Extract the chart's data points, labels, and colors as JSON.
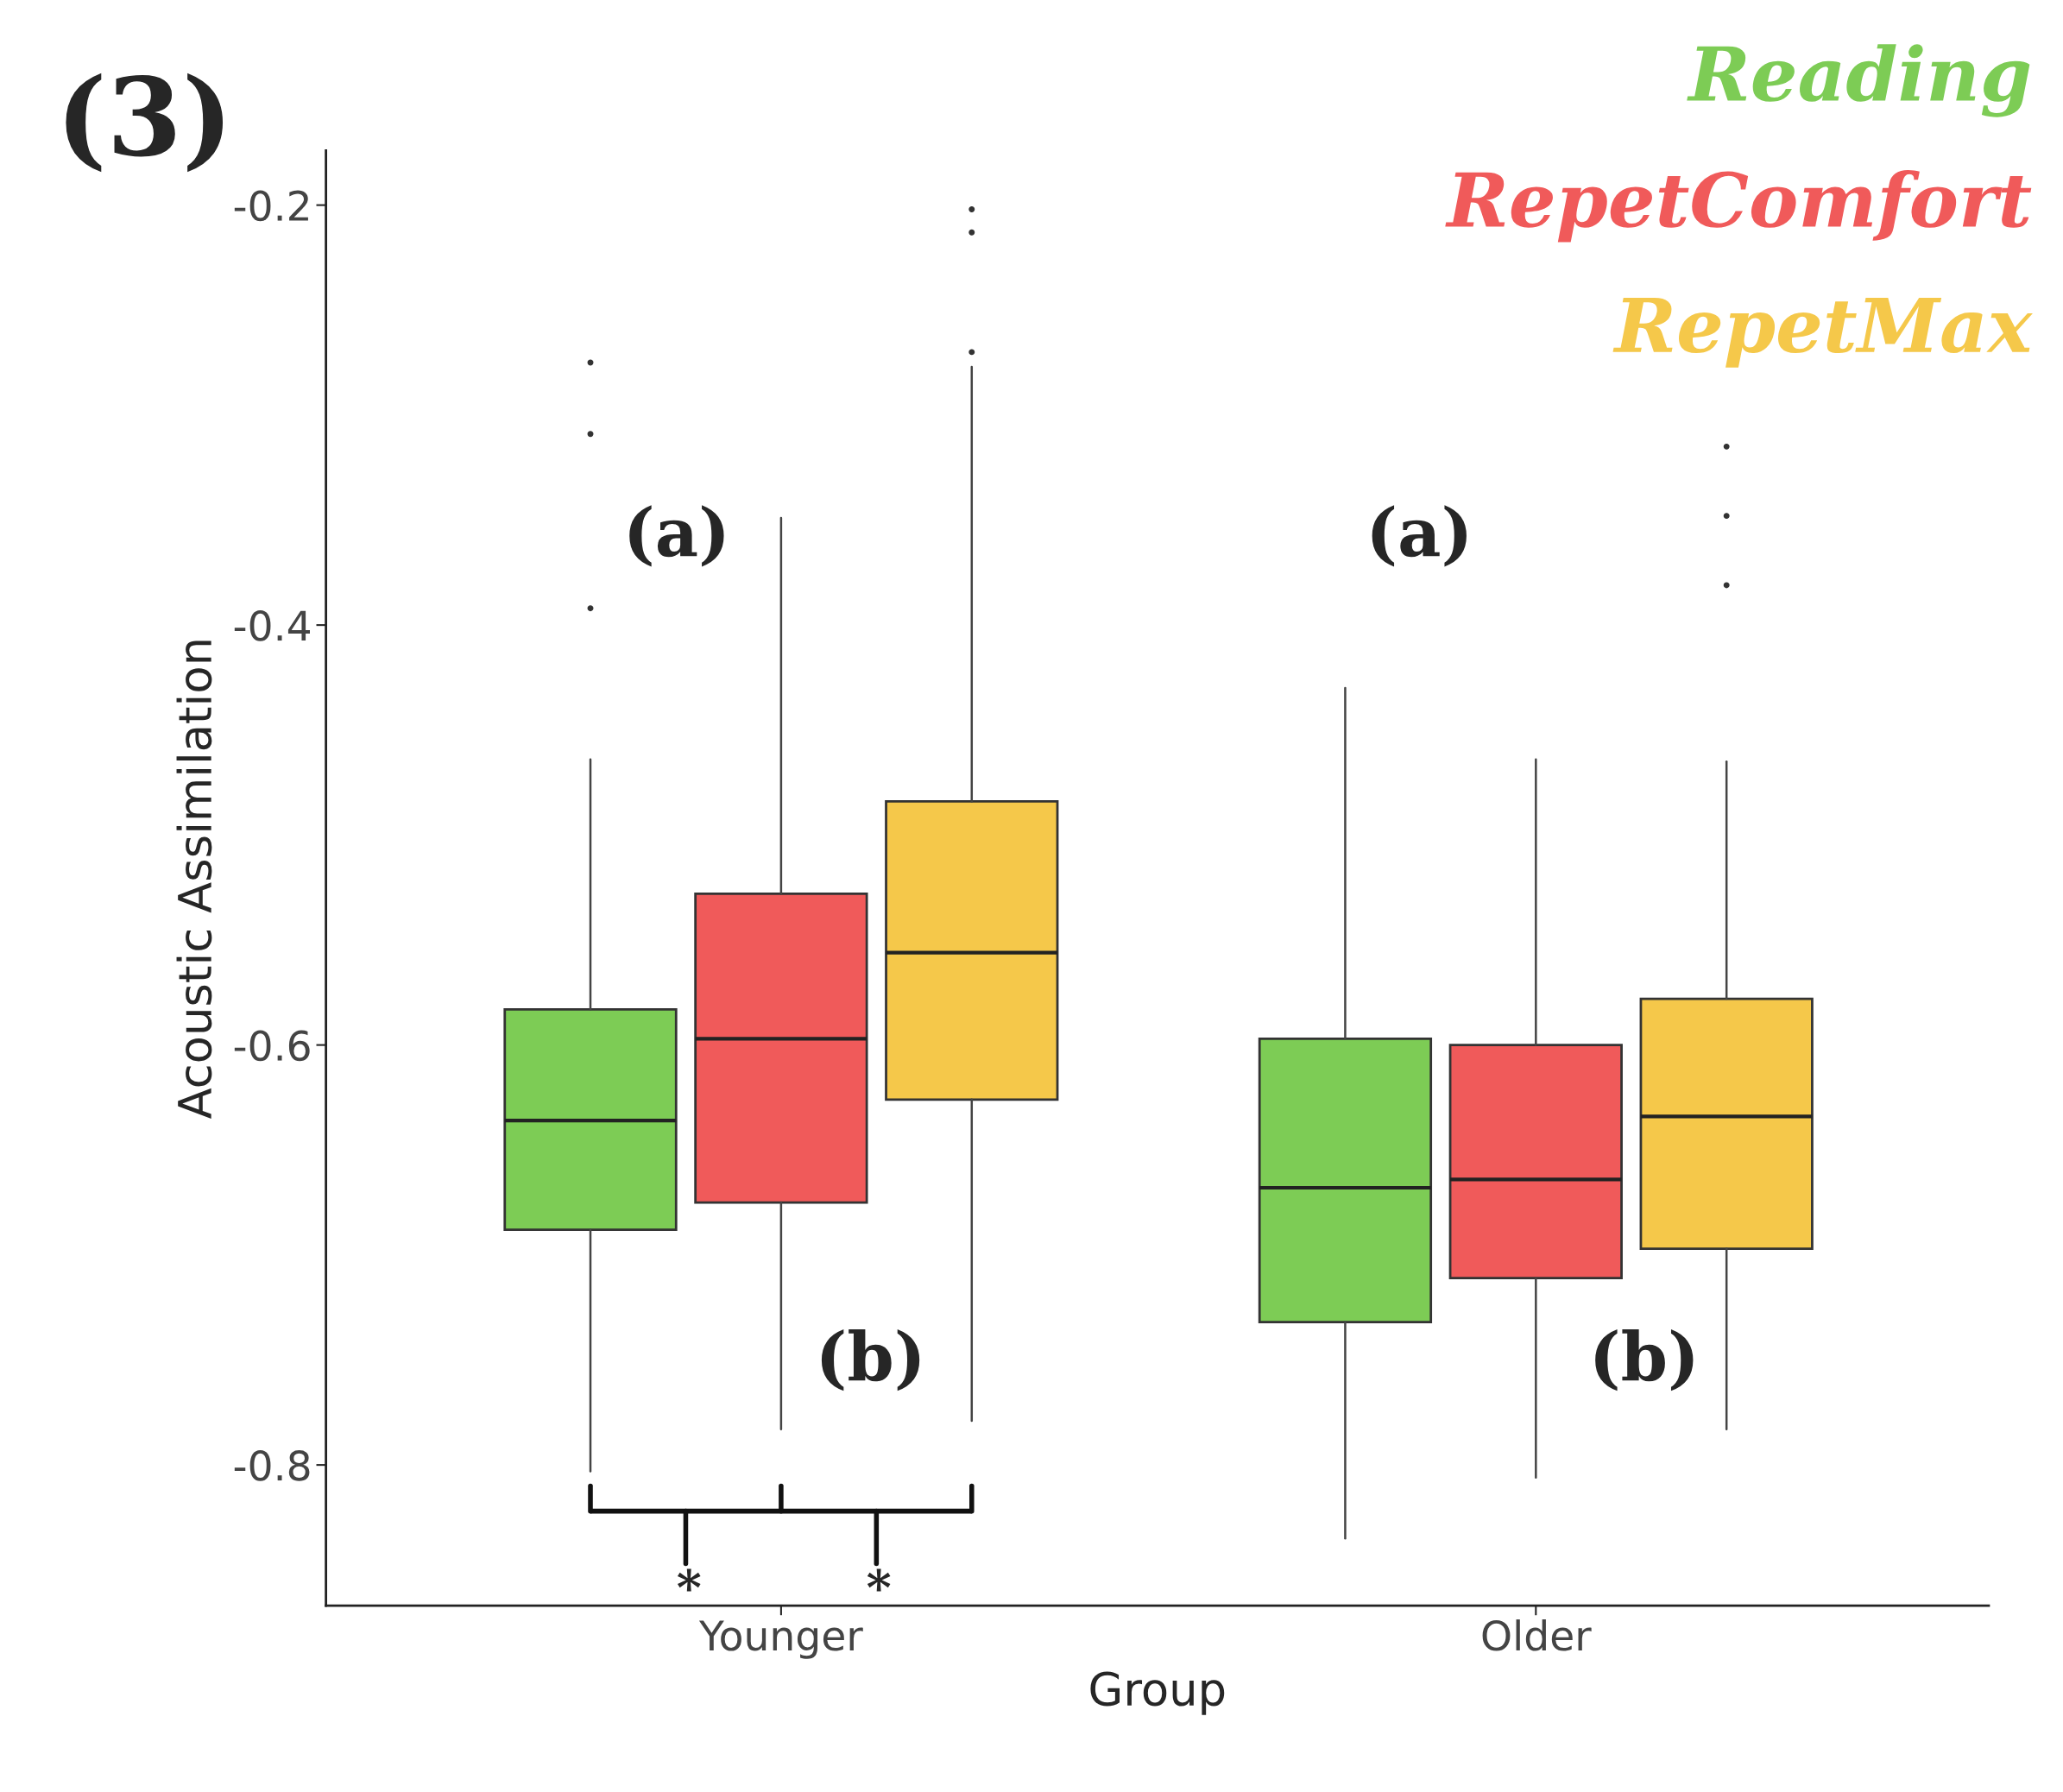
{
  "chart_data": {
    "type": "box",
    "xlabel": "Group",
    "ylabel": "Acoustic Assimilation",
    "categories": [
      "Younger",
      "Older"
    ],
    "ylim": [
      -0.867,
      -0.174
    ],
    "yticks": [
      -0.8,
      -0.6,
      -0.4,
      -0.2
    ],
    "legend": "top right",
    "grid": false,
    "series": [
      {
        "name": "Reading",
        "color": "#7dcc55",
        "boxes": [
          {
            "low": -0.803,
            "q1": -0.688,
            "median": -0.636,
            "q3": -0.583,
            "high": -0.464,
            "outliers": [
              -0.275,
              -0.309,
              -0.392
            ]
          },
          {
            "low": -0.835,
            "q1": -0.732,
            "median": -0.668,
            "q3": -0.597,
            "high": -0.43
          }
        ]
      },
      {
        "name": "RepetComfort",
        "color": "#f05a5a",
        "boxes": [
          {
            "low": -0.783,
            "q1": -0.675,
            "median": -0.597,
            "q3": -0.528,
            "high": -0.349
          },
          {
            "low": -0.806,
            "q1": -0.711,
            "median": -0.664,
            "q3": -0.6,
            "high": -0.464
          }
        ]
      },
      {
        "name": "RepetMax",
        "color": "#f5c84a",
        "boxes": [
          {
            "low": -0.779,
            "q1": -0.626,
            "median": -0.556,
            "q3": -0.484,
            "high": -0.277,
            "outliers": [
              -0.202,
              -0.213,
              -0.27
            ]
          },
          {
            "low": -0.783,
            "q1": -0.697,
            "median": -0.634,
            "q3": -0.578,
            "high": -0.465,
            "outliers": [
              -0.315,
              -0.348,
              -0.381
            ]
          }
        ]
      }
    ],
    "annotations": [
      "(3)",
      "(a)",
      "(a)",
      "(b)",
      "(b)",
      "*",
      "*"
    ]
  }
}
